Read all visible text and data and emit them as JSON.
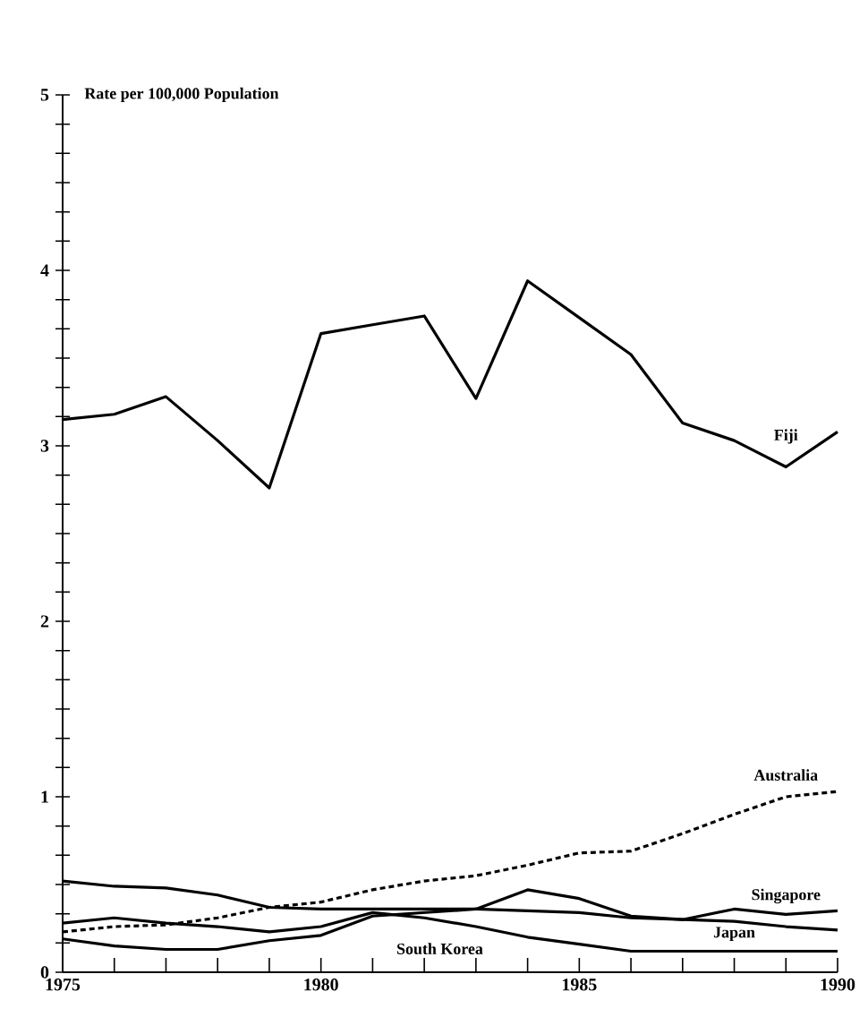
{
  "chart_data": {
    "type": "line",
    "ylabel": "Rate per 100,000 Population",
    "x": [
      1975,
      1976,
      1977,
      1978,
      1979,
      1980,
      1981,
      1982,
      1983,
      1984,
      1985,
      1986,
      1987,
      1988,
      1989,
      1990
    ],
    "xlim": [
      1975,
      1990
    ],
    "ylim": [
      0,
      5
    ],
    "xticks": [
      1975,
      {
        "value": 1976,
        "label": null
      },
      {
        "value": 1977,
        "label": null
      },
      {
        "value": 1978,
        "label": null
      },
      {
        "value": 1979,
        "label": null
      },
      1980,
      {
        "value": 1981,
        "label": null
      },
      {
        "value": 1982,
        "label": null
      },
      {
        "value": 1983,
        "label": null
      },
      {
        "value": 1984,
        "label": null
      },
      1985,
      {
        "value": 1986,
        "label": null
      },
      {
        "value": 1987,
        "label": null
      },
      {
        "value": 1988,
        "label": null
      },
      {
        "value": 1989,
        "label": null
      },
      1990
    ],
    "yticks": [
      0,
      {
        "value": 0.167,
        "label": null
      },
      {
        "value": 0.333,
        "label": null
      },
      {
        "value": 0.5,
        "label": null
      },
      {
        "value": 0.667,
        "label": null
      },
      {
        "value": 0.833,
        "label": null
      },
      1,
      {
        "value": 1.167,
        "label": null
      },
      {
        "value": 1.333,
        "label": null
      },
      {
        "value": 1.5,
        "label": null
      },
      {
        "value": 1.667,
        "label": null
      },
      {
        "value": 1.833,
        "label": null
      },
      2,
      {
        "value": 2.167,
        "label": null
      },
      {
        "value": 2.333,
        "label": null
      },
      {
        "value": 2.5,
        "label": null
      },
      {
        "value": 2.667,
        "label": null
      },
      {
        "value": 2.833,
        "label": null
      },
      3,
      {
        "value": 3.167,
        "label": null
      },
      {
        "value": 3.333,
        "label": null
      },
      {
        "value": 3.5,
        "label": null
      },
      {
        "value": 3.667,
        "label": null
      },
      {
        "value": 3.833,
        "label": null
      },
      4,
      {
        "value": 4.167,
        "label": null
      },
      {
        "value": 4.333,
        "label": null
      },
      {
        "value": 4.5,
        "label": null
      },
      {
        "value": 4.667,
        "label": null
      },
      {
        "value": 4.833,
        "label": null
      },
      5
    ],
    "grid": false,
    "series": [
      {
        "name": "Fiji",
        "color": "#000000",
        "line_style": "solid",
        "values": [
          3.15,
          3.18,
          3.28,
          3.03,
          2.76,
          3.64,
          3.69,
          3.74,
          3.27,
          3.94,
          3.73,
          3.52,
          3.13,
          3.03,
          2.88,
          3.08
        ]
      },
      {
        "name": "Australia",
        "color": "#000000",
        "line_style": "dashed",
        "values": [
          0.23,
          0.26,
          0.27,
          0.31,
          0.37,
          0.4,
          0.47,
          0.52,
          0.55,
          0.61,
          0.68,
          0.69,
          0.79,
          0.9,
          1.0,
          1.03
        ]
      },
      {
        "name": "Japan",
        "color": "#000000",
        "line_style": "solid",
        "values": [
          0.52,
          0.49,
          0.48,
          0.44,
          0.37,
          0.36,
          0.36,
          0.36,
          0.36,
          0.35,
          0.34,
          0.31,
          0.3,
          0.29,
          0.26,
          0.24
        ]
      },
      {
        "name": "Singapore",
        "color": "#000000",
        "line_style": "solid",
        "values": [
          0.19,
          0.15,
          0.13,
          0.13,
          0.18,
          0.21,
          0.32,
          0.34,
          0.36,
          0.47,
          0.42,
          0.32,
          0.3,
          0.36,
          0.33,
          0.35
        ]
      },
      {
        "name": "South Korea",
        "color": "#000000",
        "line_style": "solid",
        "values": [
          0.28,
          0.31,
          0.28,
          0.26,
          0.23,
          0.26,
          0.34,
          0.31,
          0.26,
          0.2,
          0.16,
          0.12,
          0.12,
          0.12,
          0.12,
          0.12
        ]
      }
    ]
  }
}
